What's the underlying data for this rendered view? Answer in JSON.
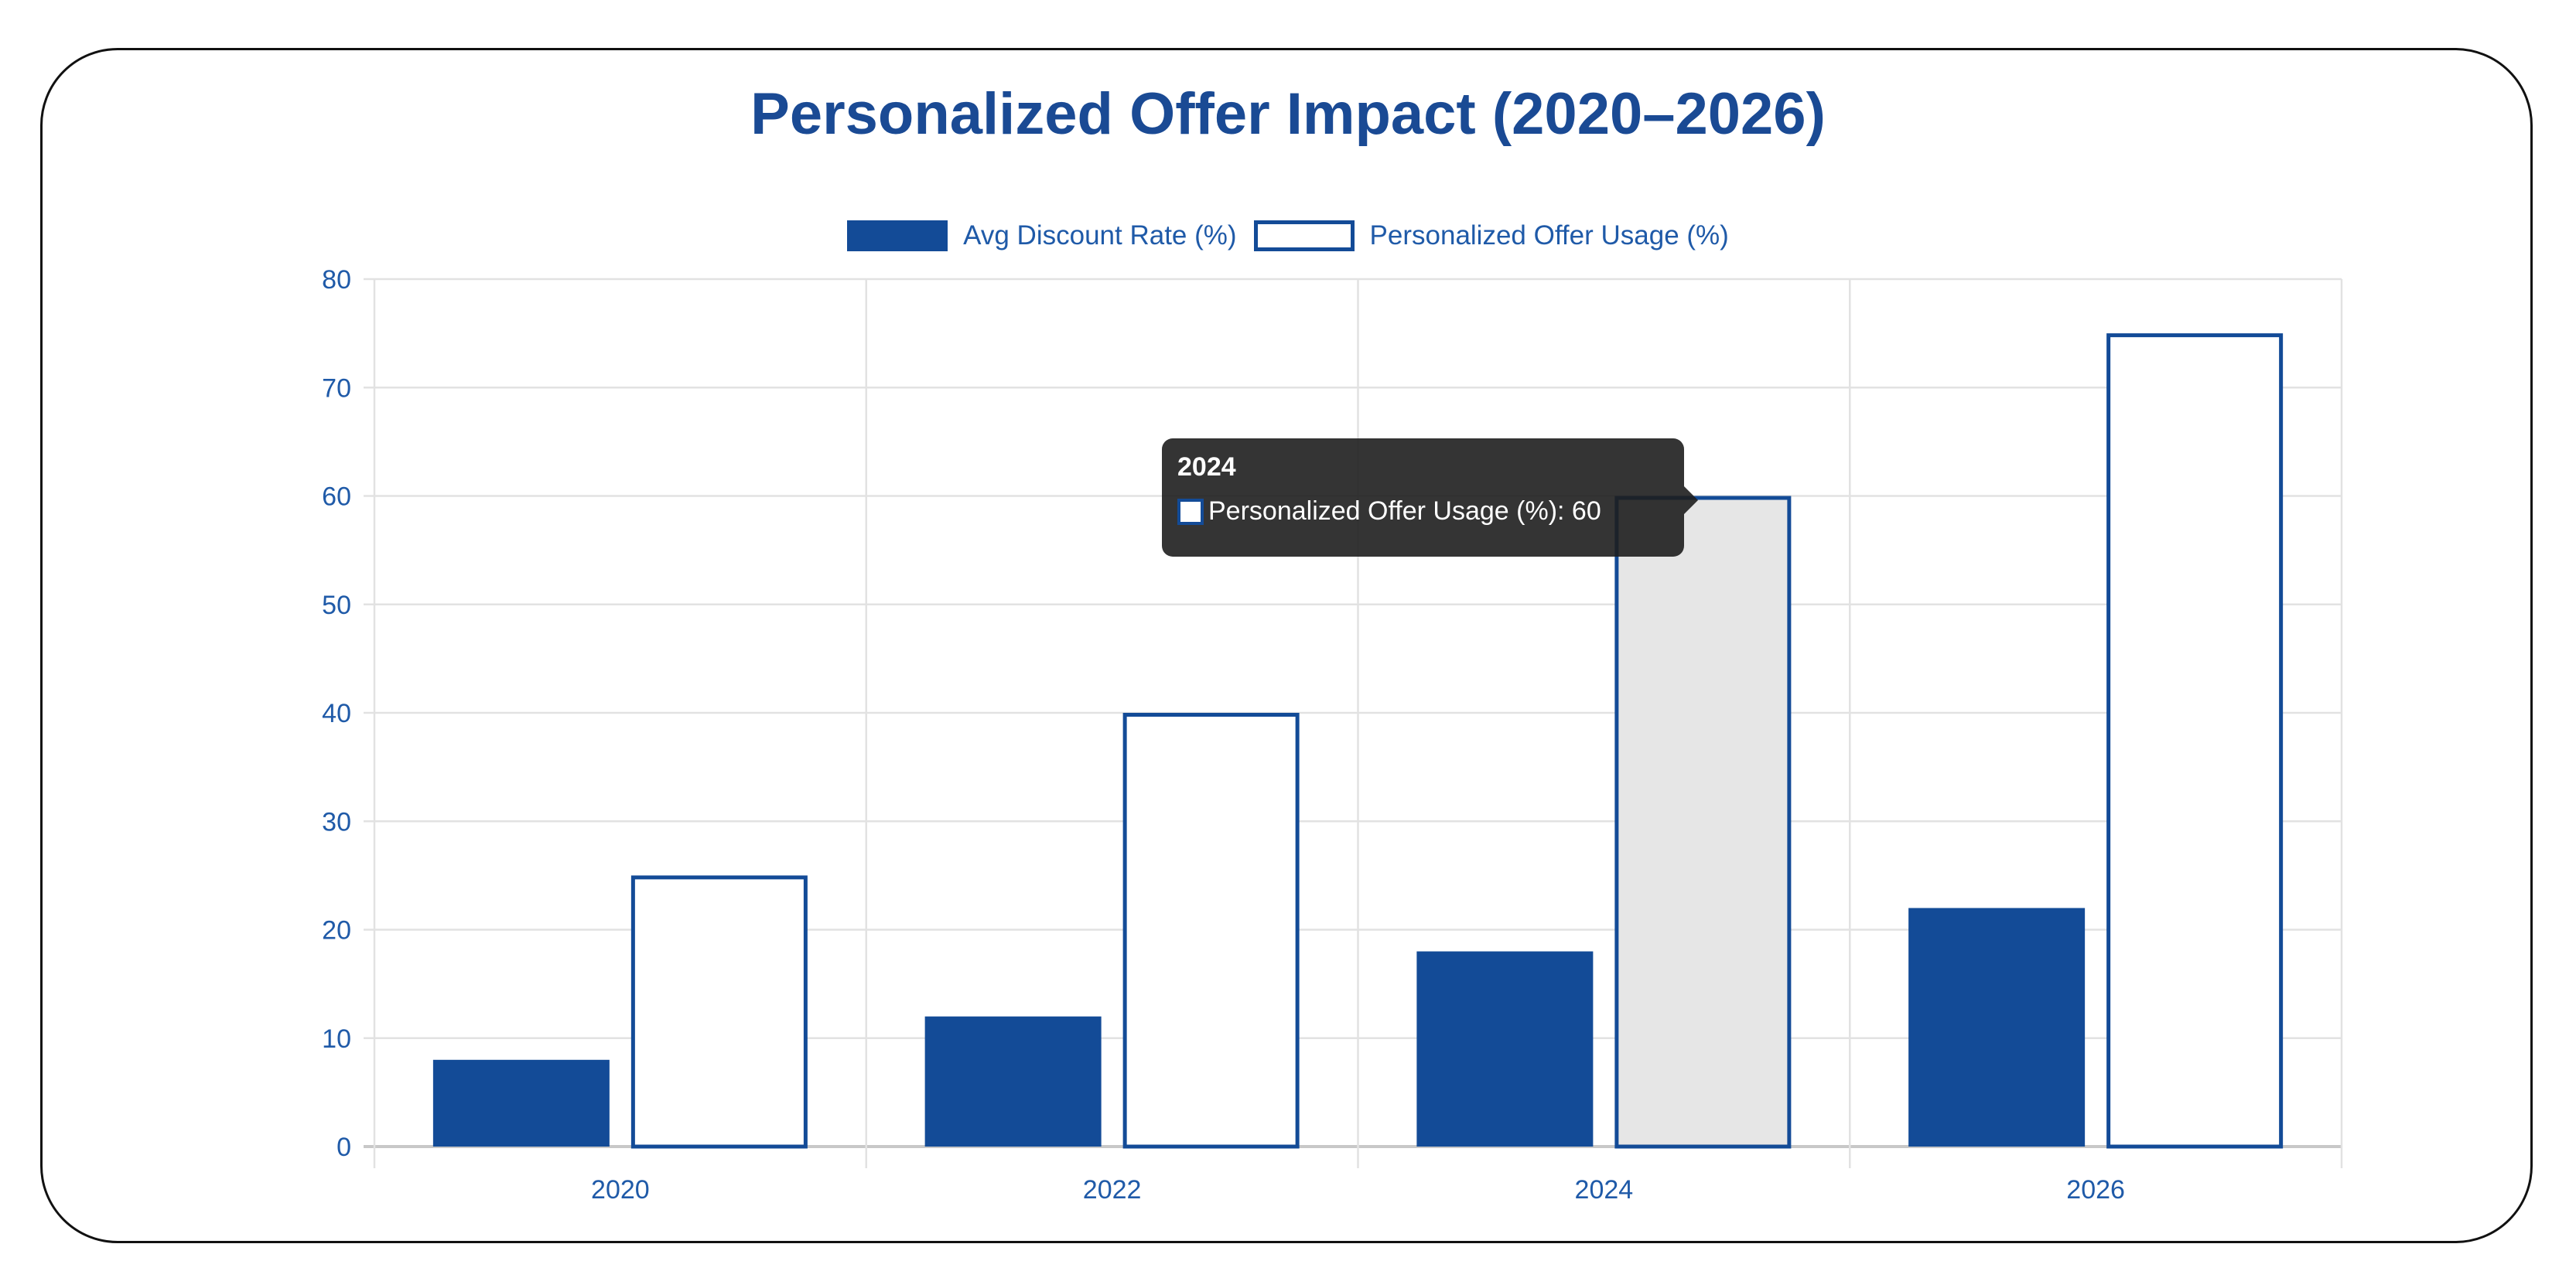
{
  "chart_data": {
    "type": "bar",
    "title": "Personalized Offer Impact (2020–2026)",
    "categories": [
      "2020",
      "2022",
      "2024",
      "2026"
    ],
    "series": [
      {
        "name": "Avg Discount Rate (%)",
        "values": [
          8,
          12,
          18,
          22
        ],
        "style": "filled",
        "color": "#134b97"
      },
      {
        "name": "Personalized Offer Usage (%)",
        "values": [
          25,
          40,
          60,
          75
        ],
        "style": "outlined",
        "color": "#134b97"
      }
    ],
    "ylim": [
      0,
      80
    ],
    "yticks": [
      "0",
      "10",
      "20",
      "30",
      "40",
      "50",
      "60",
      "70",
      "80"
    ],
    "grid": true,
    "legend": "top",
    "tooltip": {
      "title": "2024",
      "label": "Personalized Offer Usage (%): 60",
      "hovered_category": "2024",
      "hovered_series": 1,
      "hover_fill": "#e6e6e6"
    }
  }
}
